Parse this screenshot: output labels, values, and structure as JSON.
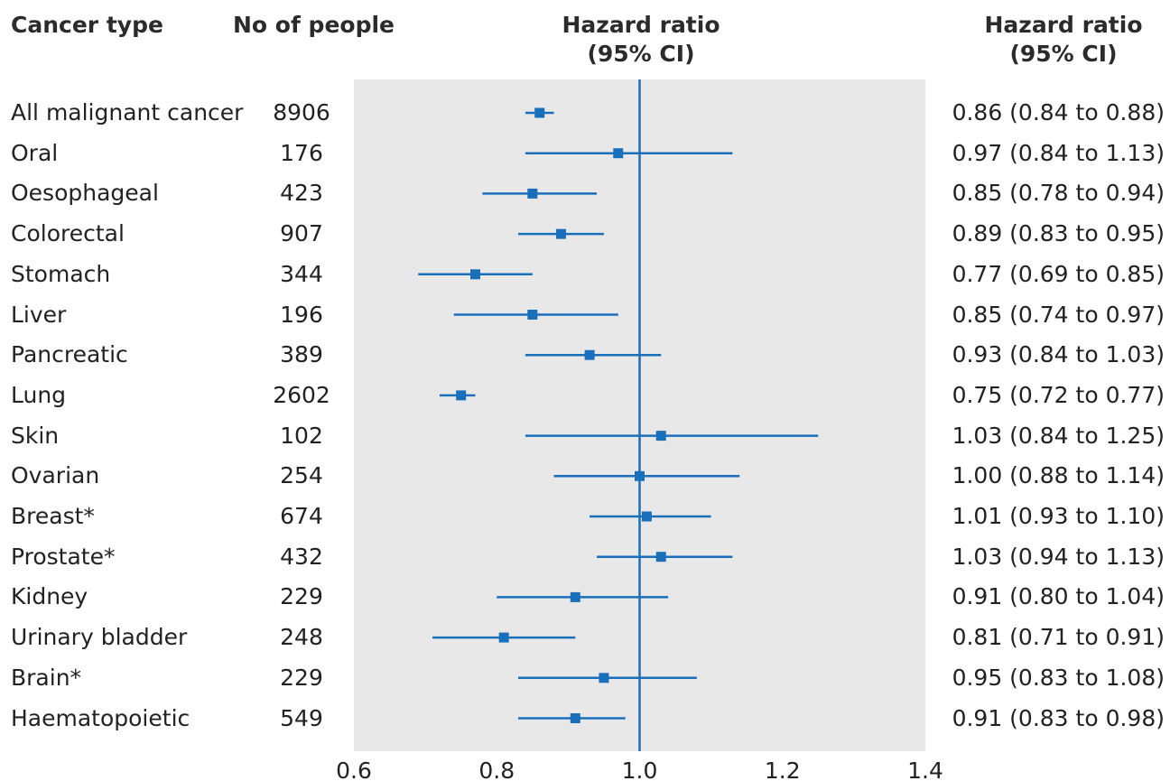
{
  "headers": {
    "cancer_type": "Cancer type",
    "no_people": "No of people",
    "hr_plot_line1": "Hazard  ratio",
    "hr_plot_line2": "(95% CI)",
    "hr_text_line1": "Hazard  ratio",
    "hr_text_line2": "(95% CI)"
  },
  "colors": {
    "panel_bg": "#e8e8e8",
    "mark": "#1a6fba",
    "text": "#222222"
  },
  "chart_data": {
    "type": "forest",
    "xlim": [
      0.6,
      1.4
    ],
    "reference_line": 1.0,
    "x_ticks": [
      "0.6",
      "0.8",
      "1.0",
      "1.2",
      "1.4"
    ],
    "rows": [
      {
        "label": "All malignant cancer",
        "n": "8906",
        "hr": 0.86,
        "lo": 0.84,
        "hi": 0.88,
        "text": "0.86 (0.84 to 0.88)"
      },
      {
        "label": "Oral",
        "n": "176",
        "hr": 0.97,
        "lo": 0.84,
        "hi": 1.13,
        "text": "0.97 (0.84 to 1.13)"
      },
      {
        "label": "Oesophageal",
        "n": "423",
        "hr": 0.85,
        "lo": 0.78,
        "hi": 0.94,
        "text": "0.85 (0.78 to 0.94)"
      },
      {
        "label": "Colorectal",
        "n": "907",
        "hr": 0.89,
        "lo": 0.83,
        "hi": 0.95,
        "text": "0.89 (0.83 to 0.95)"
      },
      {
        "label": "Stomach",
        "n": "344",
        "hr": 0.77,
        "lo": 0.69,
        "hi": 0.85,
        "text": "0.77 (0.69 to 0.85)"
      },
      {
        "label": "Liver",
        "n": "196",
        "hr": 0.85,
        "lo": 0.74,
        "hi": 0.97,
        "text": "0.85 (0.74 to 0.97)"
      },
      {
        "label": "Pancreatic",
        "n": "389",
        "hr": 0.93,
        "lo": 0.84,
        "hi": 1.03,
        "text": "0.93 (0.84 to 1.03)"
      },
      {
        "label": "Lung",
        "n": "2602",
        "hr": 0.75,
        "lo": 0.72,
        "hi": 0.77,
        "text": "0.75 (0.72 to 0.77)"
      },
      {
        "label": "Skin",
        "n": "102",
        "hr": 1.03,
        "lo": 0.84,
        "hi": 1.25,
        "text": "1.03 (0.84 to 1.25)"
      },
      {
        "label": "Ovarian",
        "n": "254",
        "hr": 1.0,
        "lo": 0.88,
        "hi": 1.14,
        "text": "1.00 (0.88 to 1.14)"
      },
      {
        "label": "Breast*",
        "n": "674",
        "hr": 1.01,
        "lo": 0.93,
        "hi": 1.1,
        "text": "1.01 (0.93 to 1.10)"
      },
      {
        "label": "Prostate*",
        "n": "432",
        "hr": 1.03,
        "lo": 0.94,
        "hi": 1.13,
        "text": "1.03 (0.94 to 1.13)"
      },
      {
        "label": "Kidney",
        "n": "229",
        "hr": 0.91,
        "lo": 0.8,
        "hi": 1.04,
        "text": "0.91 (0.80 to 1.04)"
      },
      {
        "label": "Urinary bladder",
        "n": "248",
        "hr": 0.81,
        "lo": 0.71,
        "hi": 0.91,
        "text": "0.81 (0.71 to 0.91)"
      },
      {
        "label": "Brain*",
        "n": "229",
        "hr": 0.95,
        "lo": 0.83,
        "hi": 1.08,
        "text": "0.95 (0.83 to 1.08)"
      },
      {
        "label": "Haematopoietic",
        "n": "549",
        "hr": 0.91,
        "lo": 0.83,
        "hi": 0.98,
        "text": "0.91 (0.83 to 0.98)"
      }
    ]
  }
}
